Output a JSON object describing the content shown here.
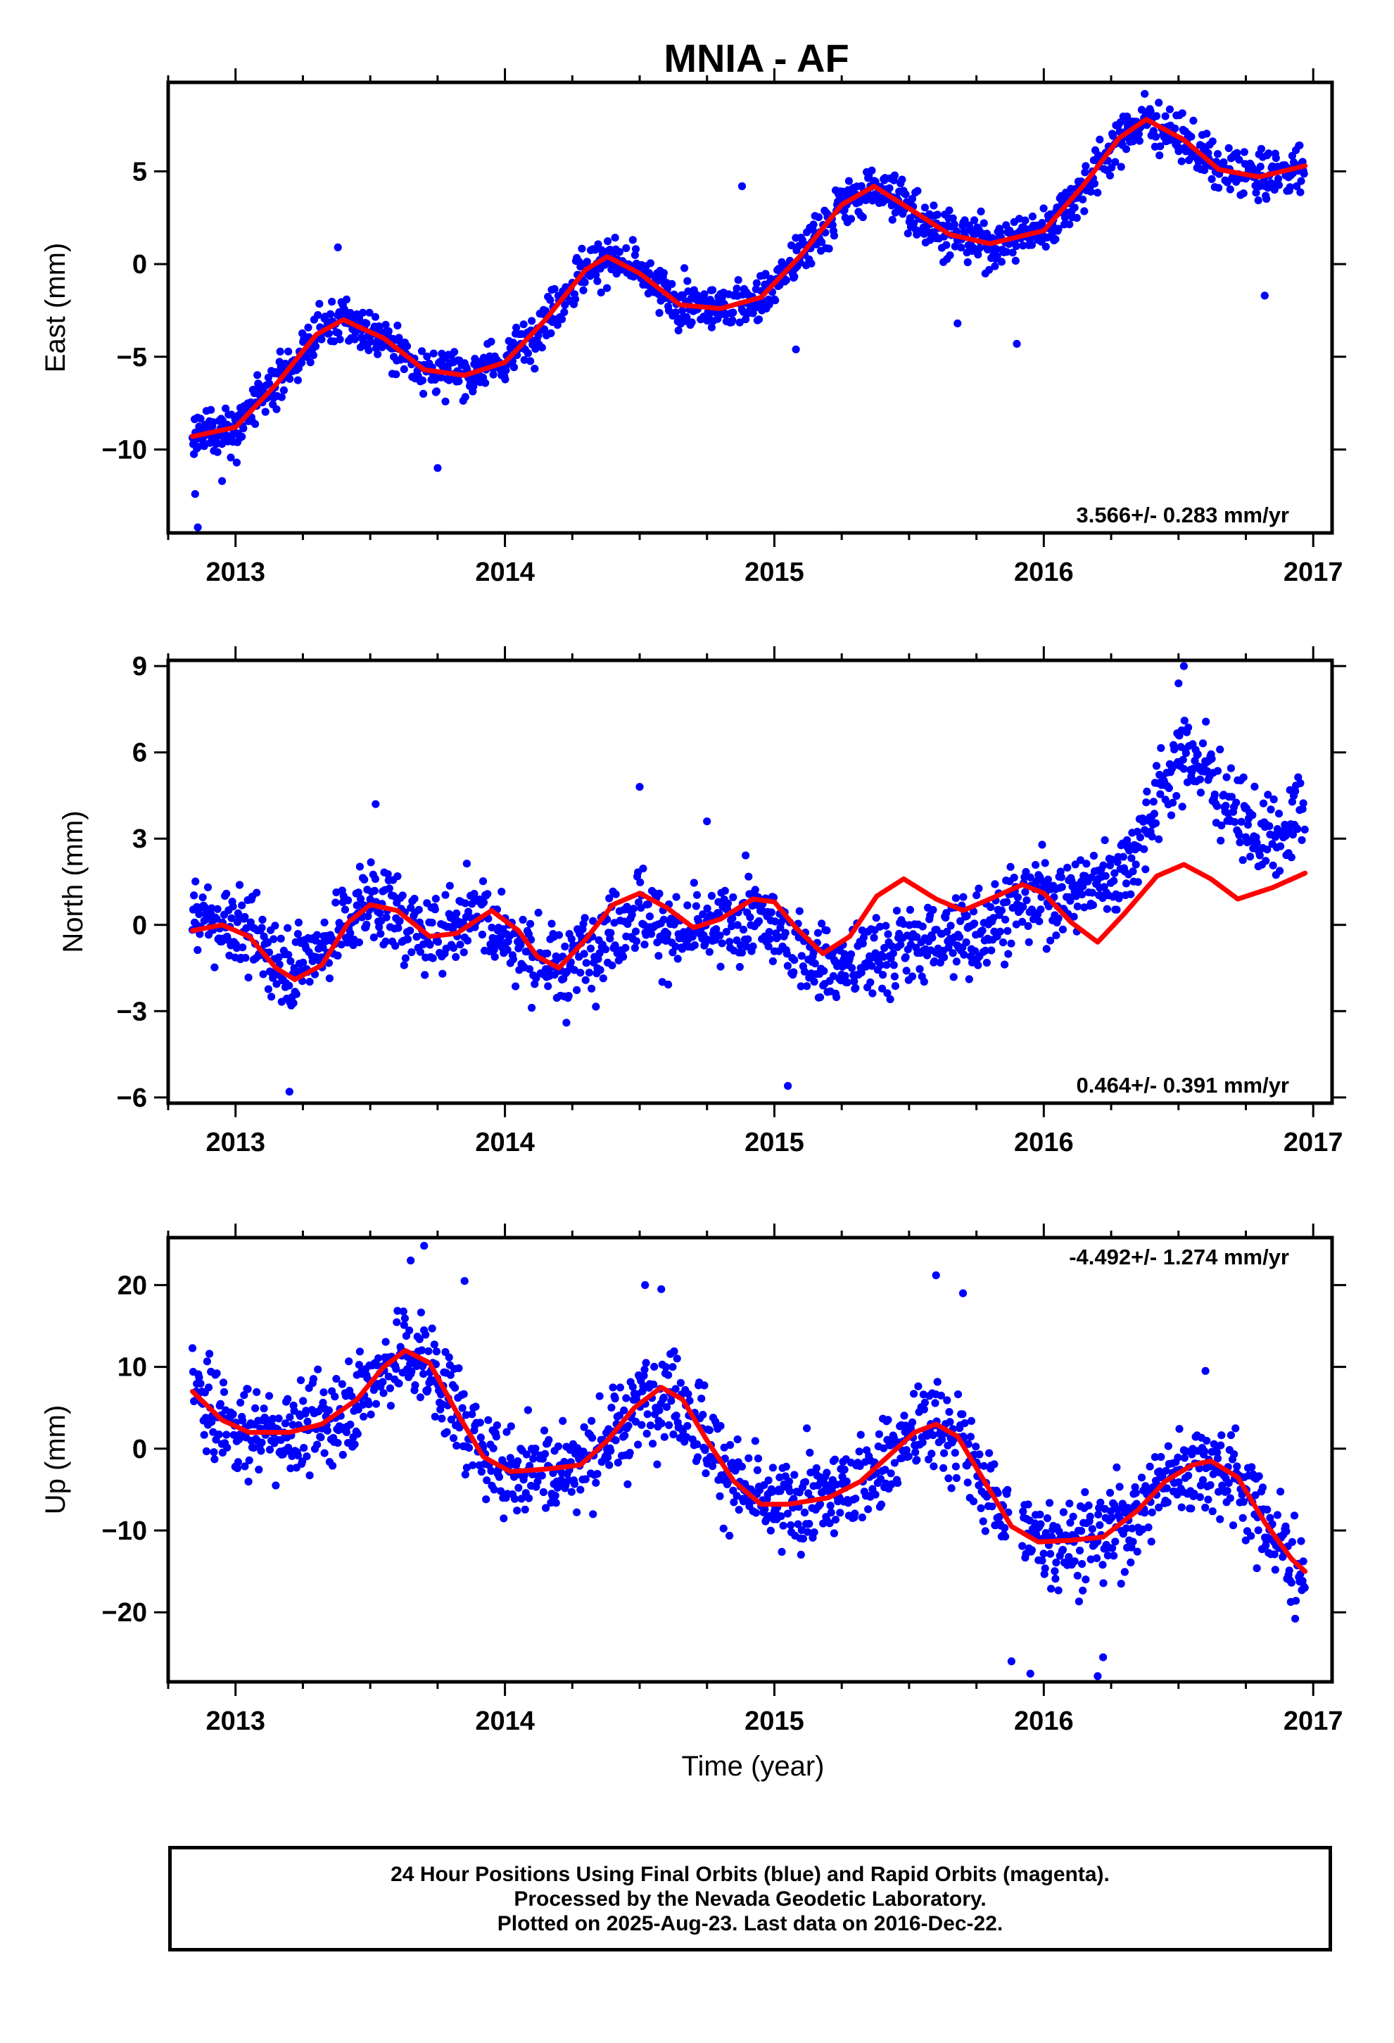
{
  "title": "MNIA - AF",
  "xlabel": "Time (year)",
  "colors": {
    "data": "#0000ff",
    "fit": "#ff0000",
    "frame": "#000000"
  },
  "footer": {
    "line1": "24 Hour Positions Using Final Orbits (blue) and Rapid Orbits (magenta).",
    "line2": "Processed by the Nevada Geodetic Laboratory.",
    "line3": "Plotted on 2025-Aug-23. Last data on 2016-Dec-22."
  },
  "chart_data": [
    {
      "type": "scatter",
      "ylabel": "East (mm)",
      "rate": "3.566+/- 0.283 mm/yr",
      "rate_position": "bottom-right",
      "xlim": [
        2012.75,
        2017.07
      ],
      "ylim": [
        -14.5,
        9.8
      ],
      "x_ticks": [
        2013,
        2014,
        2015,
        2016,
        2017
      ],
      "y_ticks": [
        -10,
        -5,
        0,
        5
      ],
      "data_range": [
        2012.84,
        2016.97
      ],
      "fit_curve": [
        [
          2012.84,
          -9.3
        ],
        [
          2013.0,
          -8.8
        ],
        [
          2013.15,
          -6.5
        ],
        [
          2013.3,
          -3.8
        ],
        [
          2013.4,
          -3.0
        ],
        [
          2013.55,
          -4.0
        ],
        [
          2013.7,
          -5.7
        ],
        [
          2013.85,
          -6.0
        ],
        [
          2014.0,
          -5.3
        ],
        [
          2014.15,
          -3.0
        ],
        [
          2014.3,
          -0.3
        ],
        [
          2014.38,
          0.4
        ],
        [
          2014.5,
          -0.5
        ],
        [
          2014.65,
          -2.2
        ],
        [
          2014.8,
          -2.4
        ],
        [
          2014.95,
          -1.8
        ],
        [
          2015.1,
          0.5
        ],
        [
          2015.25,
          3.2
        ],
        [
          2015.37,
          4.2
        ],
        [
          2015.5,
          3.0
        ],
        [
          2015.65,
          1.6
        ],
        [
          2015.8,
          1.1
        ],
        [
          2016.0,
          1.8
        ],
        [
          2016.15,
          4.3
        ],
        [
          2016.28,
          6.8
        ],
        [
          2016.38,
          7.8
        ],
        [
          2016.52,
          6.7
        ],
        [
          2016.65,
          5.1
        ],
        [
          2016.8,
          4.7
        ],
        [
          2016.97,
          5.3
        ]
      ],
      "trend_points": [
        [
          2012.84,
          -9.3
        ],
        [
          2013.0,
          -8.8
        ],
        [
          2013.15,
          -6.5
        ],
        [
          2013.3,
          -3.8
        ],
        [
          2013.4,
          -3.0
        ],
        [
          2013.55,
          -4.0
        ],
        [
          2013.7,
          -5.7
        ],
        [
          2013.85,
          -6.0
        ],
        [
          2014.0,
          -5.3
        ],
        [
          2014.15,
          -3.0
        ],
        [
          2014.3,
          -0.3
        ],
        [
          2014.38,
          0.4
        ],
        [
          2014.5,
          -0.5
        ],
        [
          2014.65,
          -2.2
        ],
        [
          2014.8,
          -2.4
        ],
        [
          2014.95,
          -1.8
        ],
        [
          2015.1,
          0.5
        ],
        [
          2015.25,
          3.2
        ],
        [
          2015.37,
          4.2
        ],
        [
          2015.5,
          3.0
        ],
        [
          2015.65,
          1.6
        ],
        [
          2015.8,
          1.1
        ],
        [
          2016.0,
          1.8
        ],
        [
          2016.15,
          4.3
        ],
        [
          2016.28,
          6.8
        ],
        [
          2016.38,
          7.8
        ],
        [
          2016.52,
          6.7
        ],
        [
          2016.65,
          5.1
        ],
        [
          2016.8,
          4.7
        ],
        [
          2016.97,
          5.3
        ]
      ],
      "scatter_sd": 0.9,
      "gaps": [],
      "outliers": [
        [
          2012.85,
          -12.4
        ],
        [
          2012.86,
          -14.2
        ],
        [
          2012.95,
          -11.7
        ],
        [
          2013.38,
          0.9
        ],
        [
          2013.75,
          -11.0
        ],
        [
          2014.88,
          4.2
        ],
        [
          2015.08,
          -4.6
        ],
        [
          2015.68,
          -3.2
        ],
        [
          2015.9,
          -4.3
        ],
        [
          2016.82,
          -1.7
        ]
      ]
    },
    {
      "type": "scatter",
      "ylabel": "North (mm)",
      "rate": "0.464+/- 0.391 mm/yr",
      "rate_position": "bottom-right",
      "xlim": [
        2012.75,
        2017.07
      ],
      "ylim": [
        -6.2,
        9.2
      ],
      "x_ticks": [
        2013,
        2014,
        2015,
        2016,
        2017
      ],
      "y_ticks": [
        -6,
        -3,
        0,
        3,
        6,
        9
      ],
      "data_range": [
        2012.84,
        2016.97
      ],
      "fit_curve": [
        [
          2012.84,
          -0.2
        ],
        [
          2012.95,
          0.0
        ],
        [
          2013.05,
          -0.4
        ],
        [
          2013.15,
          -1.5
        ],
        [
          2013.22,
          -1.9
        ],
        [
          2013.32,
          -1.4
        ],
        [
          2013.42,
          0.1
        ],
        [
          2013.5,
          0.7
        ],
        [
          2013.6,
          0.5
        ],
        [
          2013.72,
          -0.4
        ],
        [
          2013.82,
          -0.3
        ],
        [
          2013.95,
          0.5
        ],
        [
          2014.05,
          -0.2
        ],
        [
          2014.12,
          -1.1
        ],
        [
          2014.2,
          -1.5
        ],
        [
          2014.3,
          -0.5
        ],
        [
          2014.4,
          0.7
        ],
        [
          2014.5,
          1.1
        ],
        [
          2014.6,
          0.6
        ],
        [
          2014.7,
          -0.1
        ],
        [
          2014.8,
          0.2
        ],
        [
          2014.92,
          0.9
        ],
        [
          2015.0,
          0.8
        ],
        [
          2015.08,
          -0.1
        ],
        [
          2015.18,
          -1.0
        ],
        [
          2015.28,
          -0.4
        ],
        [
          2015.38,
          1.0
        ],
        [
          2015.48,
          1.6
        ],
        [
          2015.6,
          0.9
        ],
        [
          2015.7,
          0.5
        ],
        [
          2015.8,
          0.9
        ],
        [
          2015.92,
          1.4
        ],
        [
          2016.0,
          1.1
        ],
        [
          2016.1,
          0.1
        ],
        [
          2016.2,
          -0.6
        ],
        [
          2016.3,
          0.4
        ],
        [
          2016.42,
          1.7
        ],
        [
          2016.52,
          2.1
        ],
        [
          2016.62,
          1.6
        ],
        [
          2016.72,
          0.9
        ],
        [
          2016.85,
          1.3
        ],
        [
          2016.97,
          1.8
        ]
      ],
      "trend_points": [
        [
          2012.84,
          0.3
        ],
        [
          2013.0,
          0.0
        ],
        [
          2013.2,
          -1.5
        ],
        [
          2013.35,
          -0.5
        ],
        [
          2013.5,
          1.0
        ],
        [
          2013.7,
          -0.5
        ],
        [
          2013.8,
          0.0
        ],
        [
          2013.9,
          0.5
        ],
        [
          2014.05,
          -0.8
        ],
        [
          2014.2,
          -1.5
        ],
        [
          2014.35,
          -0.5
        ],
        [
          2014.5,
          0.5
        ],
        [
          2014.65,
          -0.5
        ],
        [
          2014.8,
          0.0
        ],
        [
          2014.95,
          0.3
        ],
        [
          2015.1,
          -1.0
        ],
        [
          2015.25,
          -1.5
        ],
        [
          2015.4,
          -1.0
        ],
        [
          2015.55,
          -0.5
        ],
        [
          2015.7,
          -0.5
        ],
        [
          2015.85,
          0.5
        ],
        [
          2016.0,
          1.0
        ],
        [
          2016.15,
          1.2
        ],
        [
          2016.3,
          2.0
        ],
        [
          2016.45,
          5.0
        ],
        [
          2016.52,
          6.0
        ],
        [
          2016.6,
          5.5
        ],
        [
          2016.7,
          4.0
        ],
        [
          2016.8,
          3.0
        ],
        [
          2016.9,
          3.0
        ],
        [
          2016.97,
          4.5
        ]
      ],
      "scatter_sd": 1.0,
      "gaps": [],
      "outliers": [
        [
          2013.2,
          -5.8
        ],
        [
          2013.52,
          4.2
        ],
        [
          2014.5,
          4.8
        ],
        [
          2014.75,
          3.6
        ],
        [
          2015.05,
          -5.6
        ],
        [
          2016.52,
          9.0
        ],
        [
          2016.5,
          8.4
        ]
      ]
    },
    {
      "type": "scatter",
      "ylabel": "Up (mm)",
      "rate": "-4.492+/- 1.274 mm/yr",
      "rate_position": "top-right",
      "xlim": [
        2012.75,
        2017.07
      ],
      "ylim": [
        -28.5,
        25.8
      ],
      "x_ticks": [
        2013,
        2014,
        2015,
        2016,
        2017
      ],
      "y_ticks": [
        -20,
        -10,
        0,
        10,
        20
      ],
      "data_range": [
        2012.84,
        2016.97
      ],
      "fit_curve": [
        [
          2012.84,
          7.0
        ],
        [
          2012.95,
          3.5
        ],
        [
          2013.05,
          2.0
        ],
        [
          2013.2,
          2.0
        ],
        [
          2013.32,
          3.0
        ],
        [
          2013.45,
          6.0
        ],
        [
          2013.55,
          10.0
        ],
        [
          2013.63,
          12.0
        ],
        [
          2013.72,
          10.5
        ],
        [
          2013.82,
          4.5
        ],
        [
          2013.92,
          -1.0
        ],
        [
          2014.02,
          -2.8
        ],
        [
          2014.15,
          -2.5
        ],
        [
          2014.28,
          -2.0
        ],
        [
          2014.38,
          1.0
        ],
        [
          2014.48,
          5.0
        ],
        [
          2014.58,
          7.5
        ],
        [
          2014.66,
          6.0
        ],
        [
          2014.75,
          1.0
        ],
        [
          2014.85,
          -4.0
        ],
        [
          2014.95,
          -6.8
        ],
        [
          2015.05,
          -6.8
        ],
        [
          2015.2,
          -6.0
        ],
        [
          2015.32,
          -4.0
        ],
        [
          2015.42,
          -1.0
        ],
        [
          2015.52,
          2.0
        ],
        [
          2015.6,
          3.0
        ],
        [
          2015.68,
          1.5
        ],
        [
          2015.78,
          -4.0
        ],
        [
          2015.88,
          -9.5
        ],
        [
          2015.98,
          -11.4
        ],
        [
          2016.1,
          -11.2
        ],
        [
          2016.22,
          -10.8
        ],
        [
          2016.35,
          -7.5
        ],
        [
          2016.45,
          -4.0
        ],
        [
          2016.55,
          -2.0
        ],
        [
          2016.62,
          -1.5
        ],
        [
          2016.72,
          -3.5
        ],
        [
          2016.82,
          -9.0
        ],
        [
          2016.92,
          -13.5
        ],
        [
          2016.97,
          -15.0
        ]
      ],
      "trend_points": [
        [
          2012.84,
          7.0
        ],
        [
          2012.95,
          3.5
        ],
        [
          2013.05,
          2.0
        ],
        [
          2013.2,
          2.0
        ],
        [
          2013.32,
          3.0
        ],
        [
          2013.45,
          6.0
        ],
        [
          2013.55,
          10.0
        ],
        [
          2013.63,
          12.0
        ],
        [
          2013.72,
          10.5
        ],
        [
          2013.82,
          4.5
        ],
        [
          2013.92,
          -1.0
        ],
        [
          2014.02,
          -2.8
        ],
        [
          2014.15,
          -2.5
        ],
        [
          2014.28,
          -2.0
        ],
        [
          2014.38,
          1.0
        ],
        [
          2014.48,
          5.0
        ],
        [
          2014.58,
          7.5
        ],
        [
          2014.66,
          6.0
        ],
        [
          2014.75,
          1.0
        ],
        [
          2014.85,
          -4.0
        ],
        [
          2014.95,
          -6.8
        ],
        [
          2015.05,
          -6.8
        ],
        [
          2015.2,
          -6.0
        ],
        [
          2015.32,
          -4.0
        ],
        [
          2015.42,
          -1.0
        ],
        [
          2015.52,
          2.0
        ],
        [
          2015.6,
          3.0
        ],
        [
          2015.68,
          1.5
        ],
        [
          2015.78,
          -4.0
        ],
        [
          2015.88,
          -9.5
        ],
        [
          2015.98,
          -11.4
        ],
        [
          2016.1,
          -11.2
        ],
        [
          2016.22,
          -10.8
        ],
        [
          2016.35,
          -7.5
        ],
        [
          2016.45,
          -4.0
        ],
        [
          2016.55,
          -2.0
        ],
        [
          2016.62,
          -1.5
        ],
        [
          2016.72,
          -3.5
        ],
        [
          2016.82,
          -9.0
        ],
        [
          2016.92,
          -13.5
        ],
        [
          2016.97,
          -15.0
        ]
      ],
      "scatter_sd": 4.0,
      "gaps": [
        [
          2015.87,
          2015.92
        ]
      ],
      "outliers": [
        [
          2013.65,
          23.0
        ],
        [
          2013.7,
          24.8
        ],
        [
          2013.85,
          20.5
        ],
        [
          2014.52,
          20.0
        ],
        [
          2014.58,
          19.5
        ],
        [
          2015.6,
          21.2
        ],
        [
          2015.7,
          19.0
        ],
        [
          2015.88,
          -26.0
        ],
        [
          2015.95,
          -27.5
        ],
        [
          2016.2,
          -27.8
        ],
        [
          2016.22,
          -25.5
        ],
        [
          2016.6,
          9.5
        ]
      ]
    }
  ]
}
